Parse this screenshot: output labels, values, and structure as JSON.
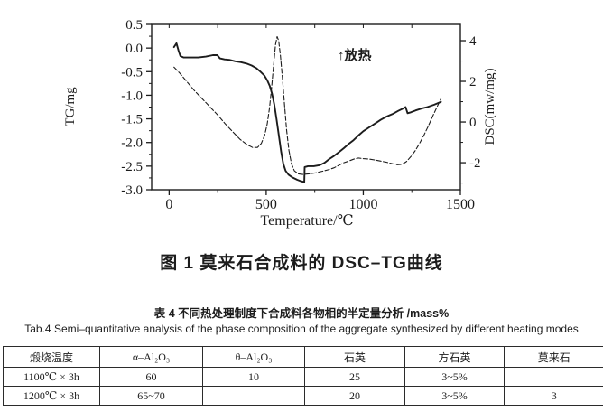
{
  "figure": {
    "caption": "图 1 莫来石合成料的 DSC–TG曲线"
  },
  "chart_data": {
    "type": "line",
    "title": "",
    "xlabel": "Temperature/℃",
    "ylabel_left": "TG/mg",
    "ylabel_right": "DSC(mw/mg)",
    "annotation": "↑放热",
    "legend": "none",
    "x_axis": {
      "ticks": [
        0,
        500,
        1000,
        1500
      ],
      "minor_ticks": [
        250,
        750,
        1250
      ],
      "range": [
        -90,
        1500
      ]
    },
    "y_left": {
      "ticks": [
        0.5,
        0.0,
        -0.5,
        -1.0,
        -1.5,
        -2.0,
        -2.5,
        -3.0
      ],
      "range": [
        -3.0,
        0.5
      ],
      "minor_step": 0.25
    },
    "y_right": {
      "ticks": [
        4,
        2,
        0,
        -2
      ],
      "minor_ticks": [
        3,
        1,
        -1,
        -3
      ],
      "plot_range": [
        -3.33,
        4.8
      ]
    },
    "series": [
      {
        "name": "DSC",
        "axis": "right",
        "style": "dashed",
        "points": [
          [
            25,
            2.7
          ],
          [
            55,
            2.4
          ],
          [
            90,
            2.0
          ],
          [
            130,
            1.55
          ],
          [
            170,
            1.15
          ],
          [
            210,
            0.75
          ],
          [
            250,
            0.35
          ],
          [
            290,
            -0.1
          ],
          [
            330,
            -0.5
          ],
          [
            365,
            -0.85
          ],
          [
            400,
            -1.1
          ],
          [
            430,
            -1.25
          ],
          [
            455,
            -1.25
          ],
          [
            475,
            -1.05
          ],
          [
            492,
            -0.65
          ],
          [
            505,
            -0.1
          ],
          [
            517,
            0.7
          ],
          [
            528,
            1.7
          ],
          [
            538,
            2.8
          ],
          [
            548,
            3.8
          ],
          [
            556,
            4.2
          ],
          [
            564,
            4.0
          ],
          [
            573,
            3.3
          ],
          [
            583,
            2.2
          ],
          [
            594,
            0.9
          ],
          [
            605,
            -0.4
          ],
          [
            617,
            -1.4
          ],
          [
            630,
            -2.05
          ],
          [
            645,
            -2.4
          ],
          [
            665,
            -2.55
          ],
          [
            690,
            -2.58
          ],
          [
            720,
            -2.55
          ],
          [
            755,
            -2.5
          ],
          [
            790,
            -2.42
          ],
          [
            820,
            -2.35
          ],
          [
            850,
            -2.25
          ],
          [
            875,
            -2.12
          ],
          [
            900,
            -2.0
          ],
          [
            925,
            -1.92
          ],
          [
            950,
            -1.83
          ],
          [
            975,
            -1.77
          ],
          [
            1000,
            -1.8
          ],
          [
            1030,
            -1.82
          ],
          [
            1060,
            -1.87
          ],
          [
            1090,
            -1.92
          ],
          [
            1120,
            -1.98
          ],
          [
            1150,
            -2.05
          ],
          [
            1175,
            -2.1
          ],
          [
            1200,
            -2.08
          ],
          [
            1222,
            -1.95
          ],
          [
            1245,
            -1.7
          ],
          [
            1268,
            -1.4
          ],
          [
            1290,
            -1.05
          ],
          [
            1312,
            -0.65
          ],
          [
            1335,
            -0.2
          ],
          [
            1358,
            0.3
          ],
          [
            1380,
            0.75
          ],
          [
            1400,
            1.15
          ]
        ]
      },
      {
        "name": "TG",
        "axis": "left",
        "style": "solid",
        "points": [
          [
            25,
            0.02
          ],
          [
            38,
            0.1
          ],
          [
            48,
            -0.05
          ],
          [
            58,
            -0.17
          ],
          [
            75,
            -0.2
          ],
          [
            110,
            -0.2
          ],
          [
            150,
            -0.2
          ],
          [
            190,
            -0.18
          ],
          [
            225,
            -0.15
          ],
          [
            248,
            -0.15
          ],
          [
            262,
            -0.22
          ],
          [
            285,
            -0.24
          ],
          [
            310,
            -0.25
          ],
          [
            340,
            -0.28
          ],
          [
            370,
            -0.3
          ],
          [
            400,
            -0.33
          ],
          [
            425,
            -0.37
          ],
          [
            450,
            -0.43
          ],
          [
            470,
            -0.5
          ],
          [
            490,
            -0.58
          ],
          [
            505,
            -0.68
          ],
          [
            518,
            -0.8
          ],
          [
            530,
            -0.97
          ],
          [
            542,
            -1.2
          ],
          [
            553,
            -1.5
          ],
          [
            565,
            -1.85
          ],
          [
            577,
            -2.2
          ],
          [
            588,
            -2.45
          ],
          [
            600,
            -2.6
          ],
          [
            615,
            -2.68
          ],
          [
            635,
            -2.74
          ],
          [
            660,
            -2.79
          ],
          [
            680,
            -2.82
          ],
          [
            696,
            -2.84
          ],
          [
            698,
            -2.52
          ],
          [
            715,
            -2.5
          ],
          [
            745,
            -2.5
          ],
          [
            775,
            -2.48
          ],
          [
            800,
            -2.43
          ],
          [
            825,
            -2.35
          ],
          [
            850,
            -2.28
          ],
          [
            875,
            -2.2
          ],
          [
            900,
            -2.12
          ],
          [
            925,
            -2.03
          ],
          [
            950,
            -1.95
          ],
          [
            975,
            -1.85
          ],
          [
            1000,
            -1.76
          ],
          [
            1030,
            -1.68
          ],
          [
            1060,
            -1.6
          ],
          [
            1090,
            -1.52
          ],
          [
            1120,
            -1.45
          ],
          [
            1150,
            -1.4
          ],
          [
            1180,
            -1.33
          ],
          [
            1205,
            -1.28
          ],
          [
            1218,
            -1.25
          ],
          [
            1228,
            -1.38
          ],
          [
            1245,
            -1.36
          ],
          [
            1270,
            -1.32
          ],
          [
            1300,
            -1.28
          ],
          [
            1330,
            -1.25
          ],
          [
            1365,
            -1.2
          ],
          [
            1400,
            -1.14
          ]
        ]
      }
    ]
  },
  "table_section": {
    "title_cn": "表 4 不同热处理制度下合成料各物相的半定量分析 /mass%",
    "title_en": "Tab.4 Semi–quantitative analysis of the phase composition of the aggregate synthesized by different heating modes",
    "columns": [
      "煅烧温度",
      "α–Al₂O₃",
      "θ–Al₂O₃",
      "石英",
      "方石英",
      "莫来石"
    ],
    "rows": [
      {
        "cells": [
          "1100℃ × 3h",
          "60",
          "10",
          "25",
          "3~5%",
          ""
        ]
      },
      {
        "cells": [
          "1200℃ × 3h",
          "65~70",
          "",
          "20",
          "3~5%",
          "3"
        ]
      }
    ]
  },
  "colors": {
    "ink": "#1c1c1c",
    "paper": "#ffffff"
  }
}
